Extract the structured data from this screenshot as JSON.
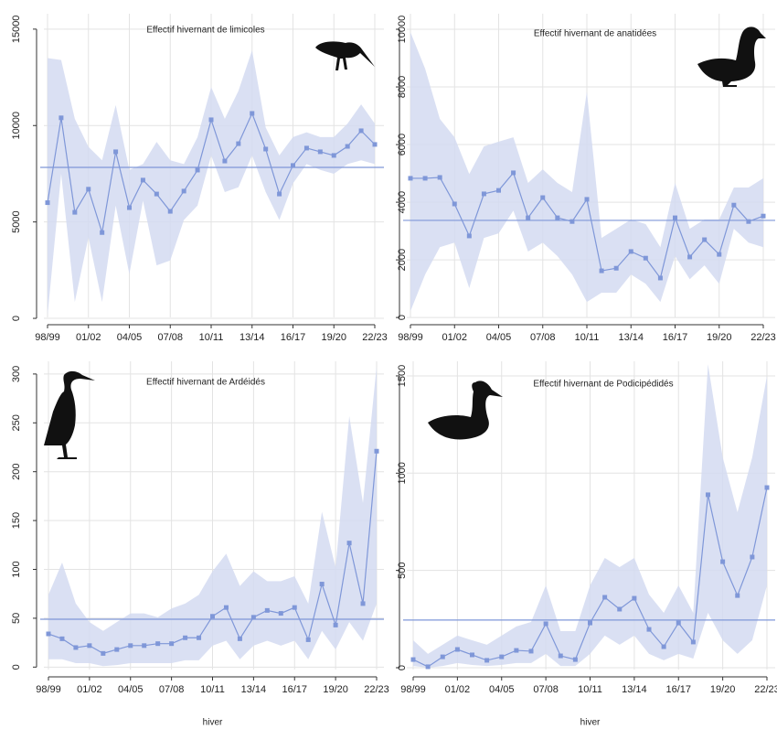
{
  "chart_data": [
    {
      "type": "line",
      "title": "Effectif hivernant de limicoles",
      "categories": [
        "98/99",
        null,
        null,
        "01/02",
        null,
        null,
        "04/05",
        null,
        null,
        "07/08",
        null,
        null,
        "10/11",
        null,
        null,
        "13/14",
        null,
        null,
        "16/17",
        null,
        null,
        "19/20",
        null,
        null,
        "22/23"
      ],
      "values": [
        6000,
        10400,
        5500,
        6700,
        4450,
        8640,
        5740,
        7170,
        6450,
        5550,
        6600,
        7690,
        10300,
        8160,
        9060,
        10630,
        8780,
        6450,
        7930,
        8830,
        8640,
        8450,
        8920,
        9730,
        9020
      ],
      "band": {
        "lower": [
          150,
          7500,
          850,
          4200,
          850,
          5850,
          2300,
          6100,
          2750,
          3000,
          5100,
          5850,
          8450,
          6550,
          6800,
          8450,
          6550,
          5100,
          7000,
          8000,
          7700,
          7500,
          8000,
          8200,
          8000
        ],
        "upper": [
          13500,
          13400,
          10350,
          8900,
          8200,
          11060,
          7700,
          8000,
          9150,
          8200,
          8000,
          9400,
          12000,
          10350,
          11800,
          13900,
          9900,
          8450,
          9400,
          9650,
          9400,
          9400,
          10100,
          11100,
          10100
        ]
      },
      "mean": 7830,
      "ylim": [
        -330,
        15800
      ],
      "yticks": [
        0,
        5000,
        10000,
        15000
      ],
      "grid": true,
      "color": "#7f97d8",
      "band_color": "#d3dbf1"
    },
    {
      "type": "line",
      "title": "Effectif hivernant de anatidées",
      "categories": [
        "98/99",
        null,
        null,
        "01/02",
        null,
        null,
        "04/05",
        null,
        null,
        "07/08",
        null,
        null,
        "10/11",
        null,
        null,
        "13/14",
        null,
        null,
        "16/17",
        null,
        null,
        "19/20",
        null,
        null,
        "22/23"
      ],
      "values": [
        4830,
        4830,
        4860,
        3940,
        2830,
        4290,
        4410,
        5020,
        3460,
        4160,
        3460,
        3330,
        4100,
        1620,
        1710,
        2290,
        2060,
        1370,
        3460,
        2100,
        2700,
        2190,
        3900,
        3330,
        3520
      ],
      "band": {
        "lower": [
          220,
          1490,
          2440,
          2600,
          1020,
          2760,
          2920,
          3710,
          2290,
          2600,
          2130,
          1490,
          540,
          860,
          860,
          1490,
          1170,
          540,
          2130,
          1330,
          1810,
          1170,
          3080,
          2600,
          2440
        ],
        "upper": [
          9900,
          8630,
          6890,
          6250,
          4980,
          5940,
          6100,
          6250,
          4670,
          5140,
          4670,
          4350,
          7840,
          2760,
          3080,
          3400,
          3240,
          2440,
          4670,
          3080,
          3400,
          3400,
          4510,
          4510,
          4830
        ]
      },
      "mean": 3370,
      "ylim": [
        -250,
        10540
      ],
      "yticks": [
        0,
        2000,
        4000,
        6000,
        8000,
        10000
      ],
      "grid": true,
      "color": "#7f97d8",
      "band_color": "#d3dbf1"
    },
    {
      "type": "line",
      "title": "Effectif hivernant de Ardéidés",
      "xlabel": "hiver",
      "categories": [
        "98/99",
        null,
        null,
        "01/02",
        null,
        null,
        "04/05",
        null,
        null,
        "07/08",
        null,
        null,
        "10/11",
        null,
        null,
        "13/14",
        null,
        null,
        "16/17",
        null,
        null,
        "19/20",
        null,
        null,
        "22/23"
      ],
      "values": [
        34,
        29,
        20,
        22,
        14,
        18,
        22,
        22,
        24,
        24,
        30,
        30,
        52,
        61,
        29,
        51,
        58,
        55,
        61,
        28,
        85,
        43,
        127,
        65,
        221
      ],
      "band": {
        "lower": [
          8,
          8,
          4,
          4,
          1,
          2,
          4,
          4,
          4,
          4,
          7,
          7,
          22,
          27,
          8,
          22,
          27,
          22,
          27,
          8,
          37,
          18,
          46,
          27,
          65
        ],
        "upper": [
          74,
          107,
          65,
          46,
          37,
          46,
          55,
          55,
          51,
          60,
          65,
          74,
          98,
          116,
          83,
          98,
          88,
          88,
          93,
          65,
          159,
          102,
          257,
          168,
          308
        ]
      },
      "mean": 49,
      "ylim": [
        -10,
        313
      ],
      "yticks": [
        0,
        50,
        100,
        150,
        200,
        250,
        300
      ],
      "grid": true,
      "color": "#7f97d8",
      "band_color": "#d3dbf1"
    },
    {
      "type": "line",
      "title": "Effectif hivernant de Podicipédidés",
      "xlabel": "hiver",
      "categories": [
        "98/99",
        null,
        null,
        "01/02",
        null,
        null,
        "04/05",
        null,
        null,
        "07/08",
        null,
        null,
        "10/11",
        null,
        null,
        "13/14",
        null,
        null,
        "16/17",
        null,
        null,
        "19/20",
        null,
        null,
        "22/23"
      ],
      "values": [
        42,
        5,
        56,
        94,
        66,
        38,
        56,
        89,
        85,
        226,
        61,
        42,
        230,
        362,
        301,
        357,
        197,
        108,
        230,
        132,
        889,
        545,
        371,
        569,
        926
      ],
      "band": {
        "lower": [
          9,
          0,
          9,
          24,
          14,
          9,
          14,
          24,
          24,
          71,
          9,
          9,
          71,
          165,
          118,
          165,
          71,
          38,
          71,
          47,
          282,
          141,
          71,
          141,
          423
        ],
        "upper": [
          141,
          71,
          118,
          165,
          141,
          118,
          165,
          212,
          235,
          423,
          188,
          188,
          423,
          564,
          517,
          564,
          376,
          282,
          423,
          282,
          1560,
          1081,
          799,
          1081,
          1500
        ]
      },
      "mean": 245,
      "ylim": [
        -47,
        1575
      ],
      "yticks": [
        0,
        500,
        1000,
        1500
      ],
      "grid": true,
      "color": "#7f97d8",
      "band_color": "#d3dbf1"
    }
  ]
}
